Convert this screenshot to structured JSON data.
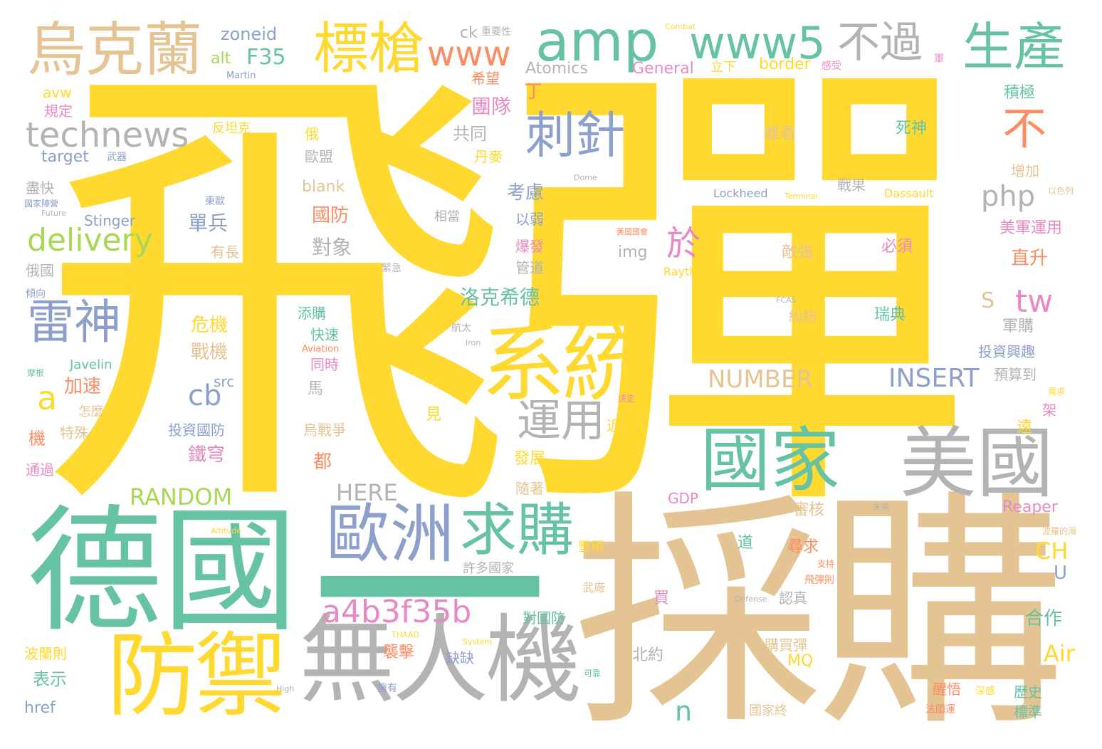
{
  "palette": {
    "yellow": "#ffd92f",
    "green": "#66c2a5",
    "tan": "#e5c494",
    "gray": "#b3b3b3",
    "blue": "#8da0cb",
    "orange": "#fc8d62",
    "pink": "#e78ac3",
    "lime": "#a6d854"
  },
  "words": {
    "w1": "飛彈",
    "w2": "採購",
    "w3": "德國",
    "w4": "一",
    "w5": "無人機",
    "w6": "防禦",
    "w7": "系統",
    "w8": "歐洲",
    "w9": "求購",
    "w10": "美國",
    "w11": "國家",
    "w12": "烏克蘭",
    "w13": "標槍",
    "w14": "amp",
    "w15": "www5",
    "w16": "生產",
    "w17": "不過",
    "w18": "www",
    "w19": "technews",
    "w20": "刺針",
    "w21": "不",
    "w22": "雷神",
    "w23": "delivery",
    "w24": "php",
    "w25": "於",
    "w26": "tw",
    "w27": "運用",
    "w28": "a4b3f35b",
    "w29": "INSERT",
    "w30": "NUMBER",
    "w31": "RANDOM",
    "w32": "HERE",
    "w33": "a",
    "w34": "cb",
    "w35": "n",
    "w36": "CH",
    "w37": "Air",
    "w38": "zoneid",
    "w39": "F35",
    "w40": "alt",
    "w41": "ck",
    "w42": "Atomics",
    "w43": "General",
    "w44": "border",
    "w45": "target",
    "w46": "blank",
    "w47": "Stinger",
    "w48": "Lockheed",
    "w49": "Dassault",
    "w50": "Raytheon",
    "w51": "Javelin",
    "w52": "src",
    "w53": "img",
    "w54": "GDP",
    "w55": "Reaper",
    "w56": "MQ",
    "w57": "href",
    "w58": "avw",
    "w59": "Martin",
    "w60": "Aviation",
    "w61": "Iron",
    "w62": "Dome",
    "w63": "Terminal",
    "w64": "Combat",
    "w65": "Defense",
    "w66": "System",
    "w67": "THAAD",
    "w68": "Altitude",
    "w69": "High",
    "w70": "FCAS",
    "w71": "Future",
    "w72": "S",
    "w73": "U",
    "w74": "丁",
    "w75": "希望",
    "w76": "團隊",
    "w77": "共同",
    "w78": "考慮",
    "w79": "國防",
    "w80": "單兵",
    "w81": "對象",
    "w82": "洛克希德",
    "w83": "危機",
    "w84": "戰機",
    "w85": "加速",
    "w86": "鐵穹",
    "w87": "投資國防",
    "w88": "規定",
    "w89": "反坦克",
    "w90": "俄",
    "w91": "歐盟",
    "w92": "丹麥",
    "w93": "盡快",
    "w94": "俄國",
    "w95": "有長",
    "w96": "以弱",
    "w97": "爆發",
    "w98": "管道",
    "w99": "相當",
    "w100": "離看",
    "w101": "死神",
    "w102": "積極",
    "w103": "增加",
    "w104": "戰果",
    "w105": "敵強",
    "w106": "必須",
    "w107": "美軍運用",
    "w108": "直升",
    "w109": "瑞典",
    "w110": "紛紛",
    "w111": "軍購",
    "w112": "投資興趣",
    "w113": "預算到",
    "w114": "添購",
    "w115": "快速",
    "w116": "同時",
    "w117": "馬",
    "w118": "烏戰爭",
    "w119": "都",
    "w120": "見",
    "w121": "近距",
    "w122": "發展",
    "w123": "隨著",
    "w124": "審核",
    "w125": "尋求",
    "w126": "認真",
    "w127": "對國防",
    "w128": "合作",
    "w129": "遠",
    "w130": "架",
    "w131": "歷史",
    "w132": "標準",
    "w133": "購買彈",
    "w134": "醒悟",
    "w135": "國家終",
    "w136": "道",
    "w137": "買",
    "w138": "北約",
    "w139": "缺缺",
    "w140": "襲擊",
    "w141": "表示",
    "w142": "波蘭則",
    "w143": "通過",
    "w144": "機",
    "w145": "特殊",
    "w146": "怎麼",
    "w147": "立下",
    "w148": "重要性",
    "w149": "感受",
    "w150": "軍",
    "w151": "美國國會",
    "w152": "武器",
    "w153": "國家陣營",
    "w154": "東歐",
    "w155": "緊急",
    "w156": "航太",
    "w157": "決定",
    "w158": "許多國家",
    "w159": "豐碩",
    "w160": "武廠",
    "w161": "支持",
    "w162": "飛彈則",
    "w163": "法國運",
    "w164": "深感",
    "w165": "擁有",
    "w166": "可靠",
    "w167": "未來",
    "w168": "以色列",
    "w169": "需求",
    "w170": "傾向",
    "w171": "摩根",
    "w172": "波羅的海"
  }
}
